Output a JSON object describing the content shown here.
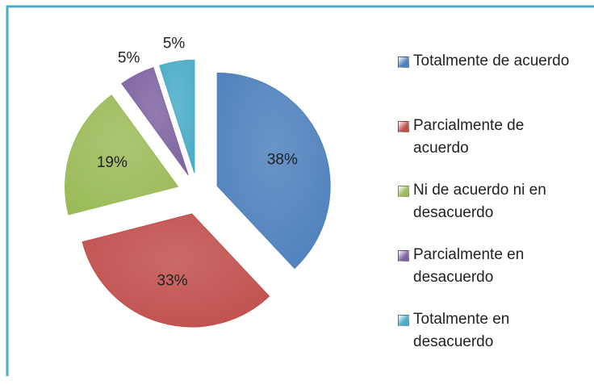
{
  "chart_data": {
    "type": "pie",
    "categories": [
      "Totalmente de acuerdo",
      "Parcialmente de acuerdo",
      "Ni de acuerdo ni en desacuerdo",
      "Parcialmente en desacuerdo",
      "Totalmente en desacuerdo"
    ],
    "values": [
      38,
      33,
      19,
      5,
      5
    ],
    "value_labels": [
      "38%",
      "33%",
      "19%",
      "5%",
      "5%"
    ],
    "colors": [
      "#4f81bd",
      "#c0504d",
      "#9bbb59",
      "#8064a2",
      "#4bacc6"
    ],
    "exploded": true,
    "legend": "right"
  }
}
